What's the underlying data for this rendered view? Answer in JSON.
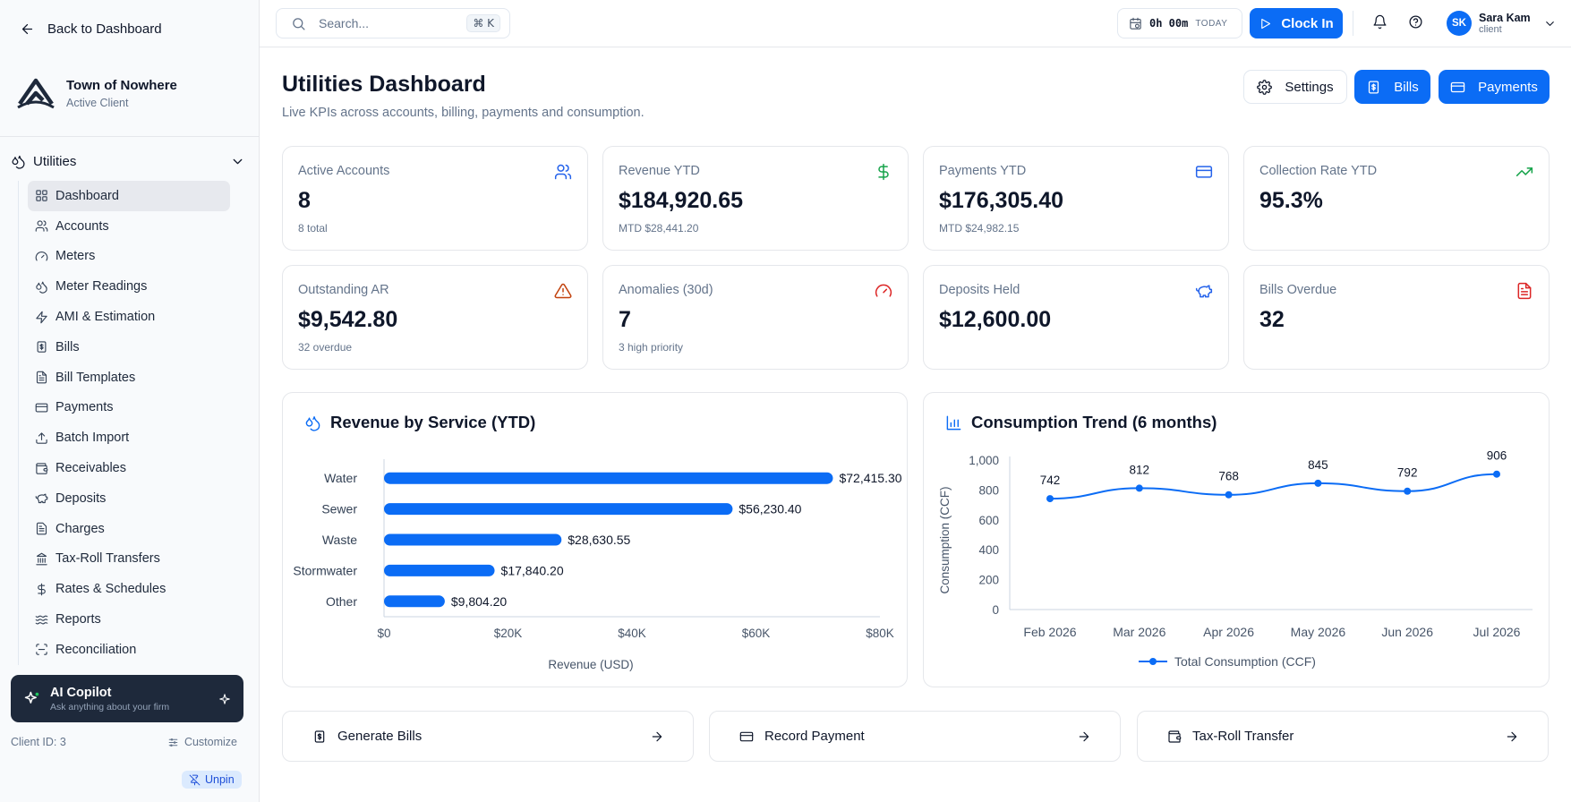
{
  "sidebar": {
    "back_label": "Back to Dashboard",
    "org_name": "Town of Nowhere",
    "org_status": "Active Client",
    "group_label": "Utilities",
    "items": [
      {
        "label": "Dashboard",
        "icon": "layout-grid-icon"
      },
      {
        "label": "Accounts",
        "icon": "users-icon"
      },
      {
        "label": "Meters",
        "icon": "gauge-icon"
      },
      {
        "label": "Meter Readings",
        "icon": "droplets-icon"
      },
      {
        "label": "AMI & Estimation",
        "icon": "zap-icon"
      },
      {
        "label": "Bills",
        "icon": "receipt-icon"
      },
      {
        "label": "Bill Templates",
        "icon": "file-text-icon"
      },
      {
        "label": "Payments",
        "icon": "credit-card-icon"
      },
      {
        "label": "Batch Import",
        "icon": "upload-icon"
      },
      {
        "label": "Receivables",
        "icon": "wallet-icon"
      },
      {
        "label": "Deposits",
        "icon": "piggy-bank-icon"
      },
      {
        "label": "Charges",
        "icon": "file-list-icon"
      },
      {
        "label": "Tax-Roll Transfers",
        "icon": "landmark-icon"
      },
      {
        "label": "Rates & Schedules",
        "icon": "dollar-icon"
      },
      {
        "label": "Reports",
        "icon": "waves-icon"
      },
      {
        "label": "Reconciliation",
        "icon": "scan-icon"
      }
    ],
    "active_index": 0,
    "copilot_title": "AI Copilot",
    "copilot_sub": "Ask anything about your firm",
    "client_id": "Client ID: 3",
    "customize_label": "Customize",
    "unpin_label": "Unpin"
  },
  "topbar": {
    "search_placeholder": "Search...",
    "shortcut": "⌘ K",
    "timer_value": "0h 00m",
    "timer_label": "TODAY",
    "clockin_label": "Clock In",
    "user_initials": "SK",
    "user_name": "Sara Kam",
    "user_role": "client"
  },
  "header": {
    "title": "Utilities Dashboard",
    "subtitle": "Live KPIs across accounts, billing, payments and consumption.",
    "settings_label": "Settings",
    "bills_label": "Bills",
    "payments_label": "Payments"
  },
  "kpis": [
    {
      "label": "Active Accounts",
      "value": "8",
      "sub": "8 total",
      "icon": "users-icon",
      "color": "#2563eb"
    },
    {
      "label": "Revenue YTD",
      "value": "$184,920.65",
      "sub": "MTD $28,441.20",
      "icon": "dollar-icon",
      "color": "#16a34a"
    },
    {
      "label": "Payments YTD",
      "value": "$176,305.40",
      "sub": "MTD $24,982.15",
      "icon": "credit-card-icon",
      "color": "#2563eb"
    },
    {
      "label": "Collection Rate YTD",
      "value": "95.3%",
      "sub": "",
      "icon": "trending-up-icon",
      "color": "#16a34a"
    },
    {
      "label": "Outstanding AR",
      "value": "$9,542.80",
      "sub": "32 overdue",
      "icon": "alert-triangle-icon",
      "color": "#c2410c"
    },
    {
      "label": "Anomalies (30d)",
      "value": "7",
      "sub": "3 high priority",
      "icon": "gauge-icon",
      "color": "#dc2626"
    },
    {
      "label": "Deposits Held",
      "value": "$12,600.00",
      "sub": "",
      "icon": "piggy-bank-icon",
      "color": "#2563eb"
    },
    {
      "label": "Bills Overdue",
      "value": "32",
      "sub": "",
      "icon": "file-text-icon",
      "color": "#dc2626"
    }
  ],
  "chart_data": [
    {
      "type": "bar",
      "orientation": "horizontal",
      "title": "Revenue by Service (YTD)",
      "categories": [
        "Water",
        "Sewer",
        "Waste",
        "Stormwater",
        "Other"
      ],
      "values": [
        72415.3,
        56230.4,
        28630.55,
        17840.2,
        9804.2
      ],
      "value_labels": [
        "$72,415.30",
        "$56,230.40",
        "$28,630.55",
        "$17,840.20",
        "$9,804.20"
      ],
      "xlabel": "Revenue (USD)",
      "xlim": [
        0,
        80000
      ],
      "xticks": [
        0,
        20000,
        40000,
        60000,
        80000
      ],
      "xtick_labels": [
        "$0",
        "$20K",
        "$40K",
        "$60K",
        "$80K"
      ],
      "color": "#0b6cf5",
      "grid": false
    },
    {
      "type": "line",
      "title": "Consumption Trend (6 months)",
      "x": [
        "Feb 2026",
        "Mar 2026",
        "Apr 2026",
        "May 2026",
        "Jun 2026",
        "Jul 2026"
      ],
      "series": [
        {
          "name": "Total Consumption (CCF)",
          "values": [
            742,
            812,
            768,
            845,
            792,
            906
          ]
        }
      ],
      "ylabel": "Consumption (CCF)",
      "ylim": [
        0,
        1000
      ],
      "yticks": [
        0,
        200,
        400,
        600,
        800,
        1000
      ],
      "ytick_labels": [
        "0",
        "200",
        "400",
        "600",
        "800",
        "1,000"
      ],
      "legend": "bottom",
      "color": "#0b6cf5",
      "grid": false
    }
  ],
  "quick_actions": [
    {
      "label": "Generate Bills",
      "icon": "receipt-icon"
    },
    {
      "label": "Record Payment",
      "icon": "credit-card-icon"
    },
    {
      "label": "Tax-Roll Transfer",
      "icon": "wallet-icon"
    }
  ]
}
